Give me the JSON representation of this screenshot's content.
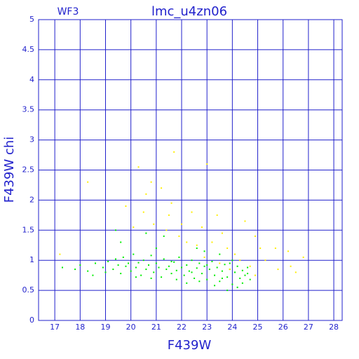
{
  "chart_data": {
    "type": "scatter",
    "title": "lmc_u4zn06",
    "subtitle": "WF3",
    "x_label": "F439W",
    "y_label": "F439W chi",
    "xlim": [
      16.36,
      28.33
    ],
    "ylim": [
      0,
      5
    ],
    "xticks": [
      17,
      18,
      19,
      20,
      21,
      22,
      23,
      24,
      25,
      26,
      27,
      28
    ],
    "yticks": [
      0,
      0.5,
      1,
      1.5,
      2,
      2.5,
      3,
      3.5,
      4,
      4.5,
      5
    ],
    "grid": true,
    "series": [
      {
        "color": "#00ee00",
        "x": [
          17.3,
          17.8,
          18.0,
          18.3,
          18.6,
          18.9,
          19.1,
          19.3,
          19.4,
          19.5,
          19.6,
          19.7,
          19.8,
          19.9,
          20.0,
          20.1,
          20.2,
          20.3,
          20.4,
          20.5,
          20.6,
          20.7,
          20.8,
          20.9,
          21.0,
          21.1,
          21.2,
          21.3,
          21.4,
          21.5,
          21.6,
          21.7,
          21.8,
          21.9,
          22.0,
          22.1,
          22.2,
          22.3,
          22.4,
          22.5,
          22.6,
          22.7,
          22.8,
          22.9,
          23.0,
          23.1,
          23.2,
          23.3,
          23.4,
          23.5,
          23.6,
          23.7,
          23.8,
          23.9,
          24.0,
          24.1,
          24.2,
          24.3,
          24.4,
          24.5,
          24.6,
          24.7,
          19.4,
          19.6,
          20.6,
          21.3,
          22.6,
          23.8,
          24.2,
          22.2,
          21.8,
          20.8,
          23.5,
          22.9,
          21.0,
          24.0,
          23.3,
          22.7,
          20.2,
          19.0,
          18.5,
          21.6,
          22.4,
          23.0,
          23.9,
          24.4,
          24.6,
          23.6
        ],
        "values": [
          0.88,
          0.85,
          0.92,
          0.82,
          0.95,
          0.88,
          0.98,
          0.85,
          1.02,
          0.92,
          0.78,
          1.05,
          0.9,
          0.95,
          0.82,
          1.1,
          0.88,
          0.96,
          0.75,
          1.0,
          0.85,
          0.92,
          1.08,
          0.8,
          0.95,
          0.88,
          0.72,
          1.02,
          0.85,
          0.9,
          0.78,
          0.97,
          0.83,
          1.05,
          0.88,
          0.75,
          0.92,
          0.82,
          1.0,
          0.7,
          0.87,
          0.95,
          0.78,
          0.9,
          0.68,
          0.85,
          0.98,
          0.75,
          0.88,
          0.65,
          0.82,
          0.93,
          0.72,
          0.85,
          0.6,
          0.8,
          0.9,
          0.7,
          0.83,
          0.75,
          0.88,
          0.68,
          1.5,
          1.3,
          1.45,
          1.4,
          1.2,
          0.5,
          0.55,
          0.62,
          0.68,
          0.7,
          1.1,
          1.15,
          1.2,
          1.0,
          0.58,
          0.65,
          0.72,
          0.8,
          0.75,
          0.98,
          0.8,
          0.92,
          0.95,
          0.62,
          0.78,
          0.7
        ]
      },
      {
        "color": "#ffee00",
        "x": [
          18.3,
          20.3,
          20.8,
          20.6,
          21.7,
          23.0,
          21.2,
          21.6,
          19.8,
          20.5,
          21.5,
          22.4,
          23.4,
          22.0,
          22.8,
          23.6,
          24.5,
          24.9,
          25.7,
          26.2,
          26.8,
          25.3,
          25.8,
          26.3,
          26.5,
          24.9,
          17.2,
          22.2,
          22.6,
          23.2,
          23.8,
          24.1,
          23.5,
          24.3,
          22.9,
          21.9,
          21.4,
          20.9,
          20.1,
          25.1,
          24.7,
          23.9
        ],
        "values": [
          2.3,
          2.55,
          2.3,
          2.1,
          2.8,
          2.6,
          2.2,
          1.95,
          1.9,
          1.8,
          1.75,
          1.8,
          1.75,
          1.6,
          1.55,
          1.45,
          1.65,
          1.4,
          1.2,
          1.15,
          1.05,
          1.0,
          0.85,
          0.9,
          0.8,
          0.75,
          1.1,
          1.3,
          1.25,
          1.3,
          1.2,
          1.1,
          0.95,
          1.0,
          1.05,
          1.4,
          1.5,
          1.6,
          1.55,
          1.2,
          0.9,
          0.85
        ]
      }
    ]
  }
}
